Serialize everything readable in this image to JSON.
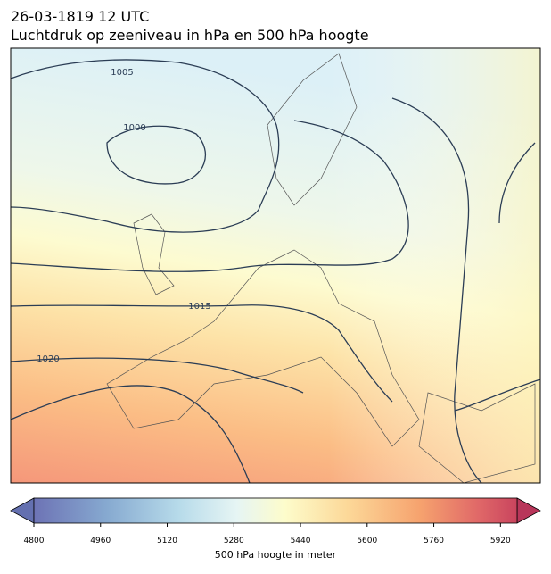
{
  "header": {
    "line1": "26-03-1819 12 UTC",
    "line2": "Luchtdruk op zeeniveau in hPa en 500 hPa hoogte"
  },
  "isobar_labels": [
    "1005",
    "1000",
    "1015",
    "1020"
  ],
  "colorbar": {
    "range": [
      4800,
      5960
    ],
    "ticks": [
      4800,
      4960,
      5120,
      5280,
      5440,
      5600,
      5760,
      5920
    ],
    "label": "500 hPa hoogte in meter"
  }
}
